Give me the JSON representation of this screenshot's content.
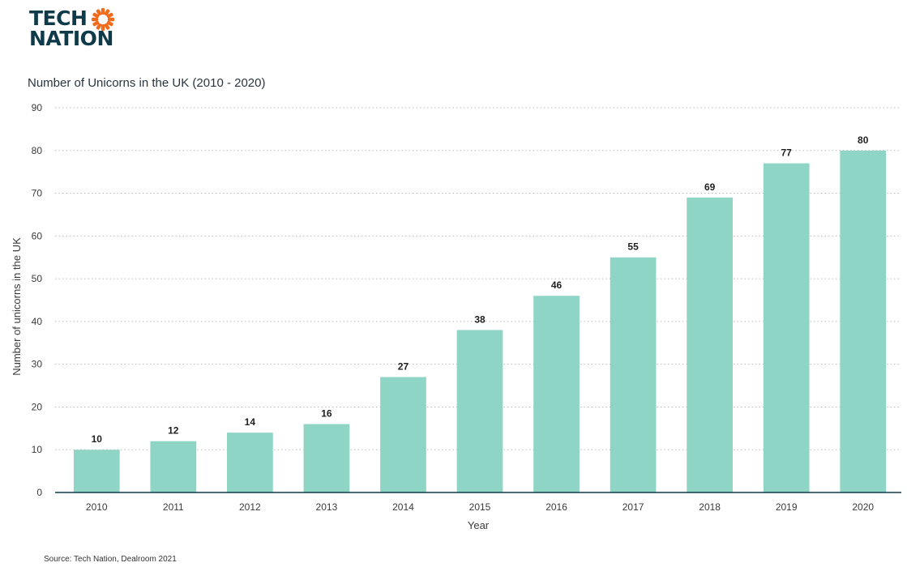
{
  "brand": {
    "logo_line1": "TECH",
    "logo_line2": "NATION",
    "logo_icon": "sun-icon",
    "logo_color": "#0e3a4a",
    "accent_color": "#f26b1d"
  },
  "source": "Source: Tech Nation, Dealroom 2021",
  "chart_data": {
    "type": "bar",
    "title": "Number of Unicorns in the UK (2010 - 2020)",
    "xlabel": "Year",
    "ylabel": "Number of unicorns in the UK",
    "categories": [
      "2010",
      "2011",
      "2012",
      "2013",
      "2014",
      "2015",
      "2016",
      "2017",
      "2018",
      "2019",
      "2020"
    ],
    "values": [
      10,
      12,
      14,
      16,
      27,
      38,
      46,
      55,
      69,
      77,
      80
    ],
    "ylim": [
      0,
      90
    ],
    "yticks": [
      0,
      10,
      20,
      30,
      40,
      50,
      60,
      70,
      80,
      90
    ],
    "grid": true,
    "data_labels": true,
    "bar_color": "#8fd5c6",
    "axis_color": "#0e3a4a"
  }
}
